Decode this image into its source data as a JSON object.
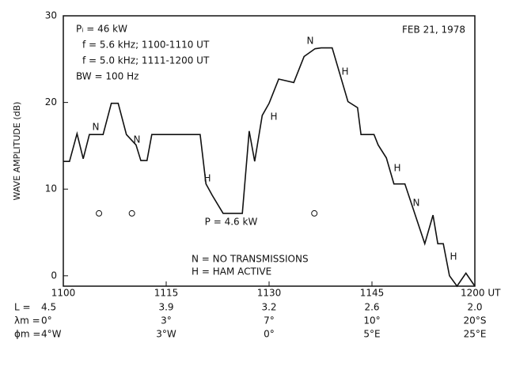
{
  "chart_data": {
    "type": "line",
    "y_label": "WAVE AMPLITUDE (dB)",
    "date": "FEB 21, 1978",
    "notes": [
      "Pᵢ = 46 kW",
      "f = 5.6 kHz; 1100-1110 UT",
      "f = 5.0 kHz; 1111-1200 UT",
      "BW = 100 Hz"
    ],
    "legend_notes": [
      "N = NO TRANSMISSIONS",
      "H = HAM ACTIVE"
    ],
    "annotations": [
      "N",
      "N",
      "H",
      "P = 4.6 kW",
      "H",
      "N",
      "H",
      "H",
      "N",
      "H"
    ],
    "x": [
      0,
      0.9,
      2,
      2.9,
      3.8,
      4.8,
      5.8,
      7,
      8,
      9.2,
      10.6,
      11.3,
      12.2,
      12.9,
      19.95,
      20.8,
      21.7,
      23.3,
      26.1,
      27.1,
      27.9,
      29,
      30,
      31.4,
      33.6,
      35.1,
      36.7,
      37.6,
      39.2,
      41.5,
      42.9,
      43.4,
      45.3,
      45.9,
      47.1,
      48.2,
      49.8,
      52.7,
      53.9,
      54.6,
      55.4,
      56.3,
      57.4,
      58.7,
      60
    ],
    "series": [
      {
        "color": "#111111",
        "values": [
          13.2,
          13.2,
          16.4,
          13.5,
          16.3,
          16.3,
          16.3,
          19.9,
          19.9,
          16.3,
          15.1,
          13.3,
          13.3,
          16.3,
          16.3,
          10.6,
          9.3,
          7.2,
          7.2,
          16.7,
          13.2,
          18.5,
          19.9,
          22.7,
          22.3,
          25.3,
          26.2,
          26.3,
          26.3,
          20.1,
          19.4,
          16.3,
          16.3,
          15.1,
          13.6,
          10.6,
          10.6,
          3.7,
          7.0,
          3.7,
          3.7,
          0,
          -1.2,
          0.3,
          -1.2
        ]
      }
    ],
    "markers": {
      "x": [
        5.2,
        10.0,
        36.6
      ],
      "values": [
        7.2,
        7.2,
        7.2
      ]
    },
    "xlim": [
      0,
      60
    ],
    "ylim": [
      -1.2,
      30
    ],
    "xticks": [
      {
        "value": 0,
        "label": "1100"
      },
      {
        "value": 15,
        "label": "1115"
      },
      {
        "value": 30,
        "label": "1130"
      },
      {
        "value": 45,
        "label": "1145"
      },
      {
        "value": 60,
        "label": "1200 UT"
      }
    ],
    "yticks": [
      0,
      10,
      20,
      30
    ],
    "parameter_rows": [
      {
        "label": "L =",
        "values": [
          "4.5",
          "3.9",
          "3.2",
          "2.6",
          "2.0"
        ]
      },
      {
        "label": "λm =",
        "values": [
          "0°",
          "3°",
          "7°",
          "10°",
          "20°S"
        ]
      },
      {
        "label": "ϕm =",
        "values": [
          "4°W",
          "3°W",
          "0°",
          "5°E",
          "25°E"
        ]
      }
    ]
  }
}
